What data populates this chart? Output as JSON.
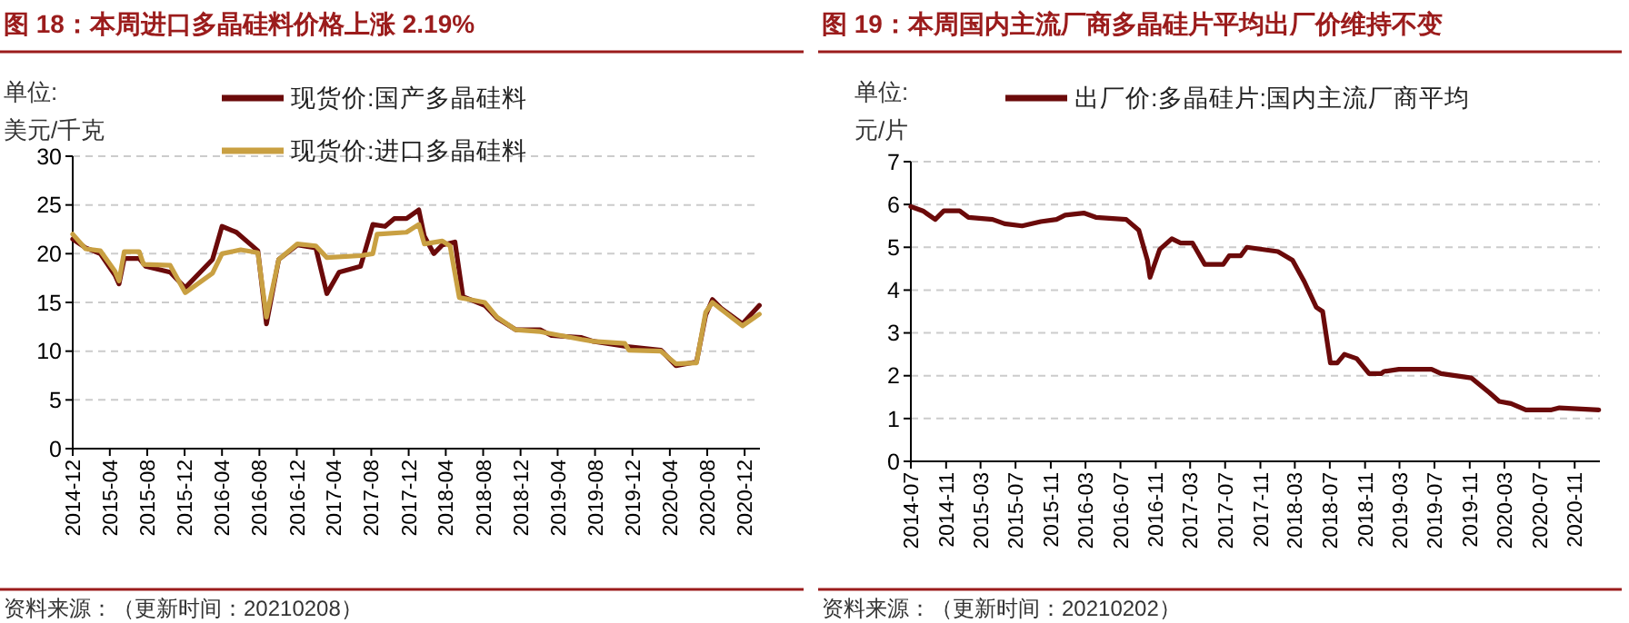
{
  "chart_data": [
    {
      "type": "line",
      "title": "图 18：本周进口多晶硅料价格上涨 2.19%",
      "ylabel": "单位:\n美元/千克",
      "annotations": [
        "资料来源：（更新时间：20210208）"
      ],
      "legend": "top",
      "grid": "y",
      "line_style": "solid",
      "xlim": [
        "2014-12-01",
        "2021-01-20"
      ],
      "ylim": [
        0,
        30
      ],
      "yticks": [
        0,
        5,
        10,
        15,
        20,
        25,
        30
      ],
      "xticks": [
        "2014-12",
        "2015-04",
        "2015-08",
        "2015-12",
        "2016-04",
        "2016-08",
        "2016-12",
        "2017-04",
        "2017-08",
        "2017-12",
        "2018-04",
        "2018-08",
        "2018-12",
        "2019-04",
        "2019-08",
        "2019-12",
        "2020-04",
        "2020-08",
        "2020-12"
      ],
      "series": [
        {
          "name": "现货价:国产多晶硅料",
          "color": "#6b0a0a",
          "x": [
            "2014-12-01",
            "2015-01-12",
            "2015-03-01",
            "2015-04-18",
            "2015-05-01",
            "2015-05-18",
            "2015-07-06",
            "2015-07-27",
            "2015-10-15",
            "2015-12-03",
            "2016-03-01",
            "2016-04-01",
            "2016-05-18",
            "2016-07-27",
            "2016-08-24",
            "2016-10-03",
            "2016-12-03",
            "2017-02-01",
            "2017-03-09",
            "2017-04-18",
            "2017-06-27",
            "2017-08-06",
            "2017-09-15",
            "2017-10-15",
            "2017-11-24",
            "2018-01-03",
            "2018-01-21",
            "2018-02-21",
            "2018-03-21",
            "2018-05-01",
            "2018-05-27",
            "2018-08-06",
            "2018-09-15",
            "2018-11-15",
            "2019-02-03",
            "2019-03-12",
            "2019-06-18",
            "2019-07-27",
            "2019-11-06",
            "2020-03-03",
            "2020-04-21",
            "2020-06-27",
            "2020-07-27",
            "2020-08-18",
            "2020-09-15",
            "2020-11-24",
            "2021-01-18"
          ],
          "values": [
            21.5,
            20.6,
            20,
            17.8,
            16.9,
            19.5,
            19.5,
            18.7,
            18.1,
            16.5,
            19.4,
            22.8,
            22.2,
            20.3,
            12.8,
            19.4,
            20.9,
            20.6,
            15.9,
            18.1,
            18.7,
            23,
            22.8,
            23.6,
            23.6,
            24.5,
            21.8,
            20,
            20.9,
            21.2,
            15.6,
            14.7,
            13.4,
            12.2,
            12.2,
            11.6,
            11.4,
            11,
            10.5,
            10.1,
            8.5,
            8.9,
            13.7,
            15.3,
            14.4,
            12.8,
            14.7
          ]
        },
        {
          "name": "现货价:进口多晶硅料",
          "color": "#c9a042",
          "x": [
            "2014-12-01",
            "2015-01-12",
            "2015-03-01",
            "2015-04-18",
            "2015-05-01",
            "2015-05-18",
            "2015-07-06",
            "2015-07-20",
            "2015-10-15",
            "2015-12-03",
            "2016-03-01",
            "2016-04-01",
            "2016-06-01",
            "2016-07-27",
            "2016-08-24",
            "2016-10-03",
            "2016-12-03",
            "2017-02-01",
            "2017-03-09",
            "2017-06-27",
            "2017-08-06",
            "2017-08-20",
            "2017-11-24",
            "2018-01-03",
            "2018-01-21",
            "2018-03-21",
            "2018-04-15",
            "2018-05-15",
            "2018-08-06",
            "2018-09-15",
            "2018-11-15",
            "2019-02-03",
            "2019-06-18",
            "2019-07-27",
            "2019-11-06",
            "2019-11-20",
            "2020-03-03",
            "2020-04-21",
            "2020-06-27",
            "2020-07-27",
            "2020-08-18",
            "2020-09-15",
            "2020-11-24",
            "2021-01-18"
          ],
          "values": [
            22,
            20.5,
            20.3,
            18.2,
            17.2,
            20.2,
            20.2,
            18.9,
            18.8,
            16,
            18,
            20,
            20.4,
            20.1,
            13.5,
            19.4,
            21,
            20.8,
            19.6,
            19.8,
            20,
            22,
            22.2,
            23,
            21,
            21.3,
            20.8,
            15.5,
            15,
            13.5,
            12.2,
            12,
            11.2,
            11,
            10.8,
            10.1,
            10,
            8.7,
            8.8,
            14,
            15,
            14.3,
            12.6,
            13.8
          ]
        }
      ]
    },
    {
      "type": "line",
      "title": "图 19：本周国内主流厂商多晶硅片平均出厂价维持不变",
      "ylabel": "单位:\n元/片",
      "annotations": [
        "资料来源：（更新时间：20210202）"
      ],
      "legend": "top",
      "grid": "y",
      "line_style": "solid",
      "xlim": [
        "2014-07-01",
        "2021-01-28"
      ],
      "ylim": [
        0,
        7
      ],
      "yticks": [
        0,
        1,
        2,
        3,
        4,
        5,
        6,
        7
      ],
      "xticks": [
        "2014-07",
        "2014-11",
        "2015-03",
        "2015-07",
        "2015-11",
        "2016-03",
        "2016-07",
        "2016-11",
        "2017-03",
        "2017-07",
        "2017-11",
        "2018-03",
        "2018-07",
        "2018-11",
        "2019-03",
        "2019-07",
        "2019-11",
        "2020-03",
        "2020-07",
        "2020-11"
      ],
      "series": [
        {
          "name": "出厂价:多晶硅片:国内主流厂商平均",
          "color": "#6b0a0a",
          "x": [
            "2014-07-01",
            "2014-08-12",
            "2014-09-24",
            "2014-10-24",
            "2014-12-18",
            "2015-01-18",
            "2015-04-12",
            "2015-05-24",
            "2015-07-24",
            "2015-09-27",
            "2015-11-21",
            "2015-12-21",
            "2016-02-24",
            "2016-04-06",
            "2016-07-21",
            "2016-09-03",
            "2016-10-03",
            "2016-10-12",
            "2016-11-15",
            "2016-12-27",
            "2017-01-27",
            "2017-03-09",
            "2017-04-21",
            "2017-06-24",
            "2017-07-15",
            "2017-08-24",
            "2017-09-15",
            "2018-01-01",
            "2018-02-21",
            "2018-04-03",
            "2018-05-15",
            "2018-06-06",
            "2018-07-03",
            "2018-07-27",
            "2018-08-21",
            "2018-10-03",
            "2018-11-15",
            "2018-12-27",
            "2019-01-06",
            "2019-02-27",
            "2019-06-21",
            "2019-07-24",
            "2019-11-06",
            "2020-01-09",
            "2020-02-12",
            "2020-03-24",
            "2020-05-15",
            "2020-08-09",
            "2020-09-09",
            "2021-01-24"
          ],
          "values": [
            5.95,
            5.85,
            5.65,
            5.85,
            5.85,
            5.7,
            5.65,
            5.55,
            5.5,
            5.6,
            5.65,
            5.75,
            5.8,
            5.7,
            5.65,
            5.4,
            4.7,
            4.3,
            4.95,
            5.2,
            5.1,
            5.1,
            4.6,
            4.6,
            4.8,
            4.8,
            5,
            4.9,
            4.7,
            4.2,
            3.6,
            3.5,
            2.3,
            2.3,
            2.5,
            2.4,
            2.05,
            2.05,
            2.1,
            2.15,
            2.15,
            2.05,
            1.95,
            1.6,
            1.4,
            1.35,
            1.2,
            1.2,
            1.25,
            1.2
          ]
        }
      ]
    }
  ]
}
